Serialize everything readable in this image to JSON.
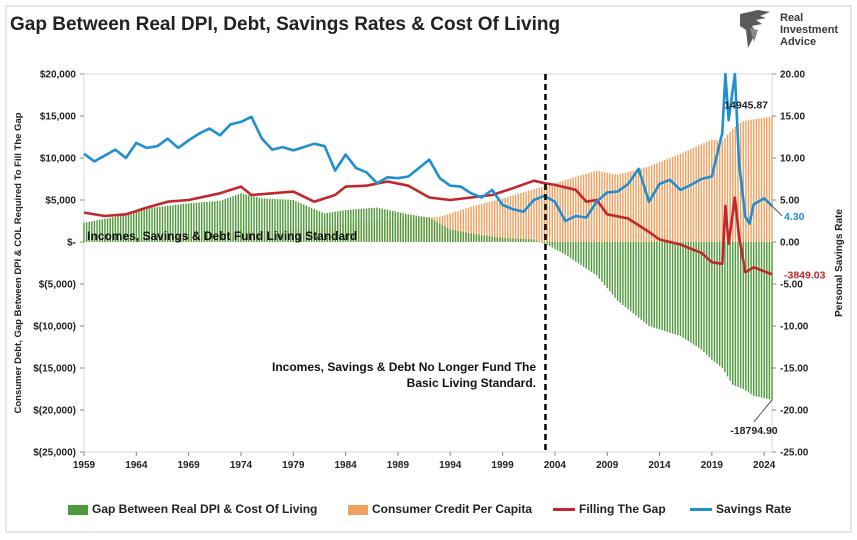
{
  "title": "Gap Between Real DPI, Debt, Savings Rates & Cost Of Living",
  "logo": {
    "lines": [
      "Real",
      "Investment",
      "Advice"
    ],
    "icon": "eagle-logo-icon"
  },
  "chart_data": {
    "type": "bar+line",
    "x_range": [
      1959,
      2024.75
    ],
    "x_ticks": [
      1959,
      1964,
      1969,
      1974,
      1979,
      1984,
      1989,
      1994,
      1999,
      2004,
      2009,
      2014,
      2019,
      2024
    ],
    "left_axis": {
      "label": "Consumer Debt, Gap Between DPI & COL Required To Fill The Gap",
      "range": [
        -25000,
        20000
      ],
      "ticks": [
        {
          "v": 20000,
          "t": "$20,000"
        },
        {
          "v": 15000,
          "t": "$15,000"
        },
        {
          "v": 10000,
          "t": "$10,000"
        },
        {
          "v": 5000,
          "t": "$5,000"
        },
        {
          "v": 0,
          "t": "$-"
        },
        {
          "v": -5000,
          "t": "$(5,000)"
        },
        {
          "v": -10000,
          "t": "$(10,000)"
        },
        {
          "v": -15000,
          "t": "$(15,000)"
        },
        {
          "v": -20000,
          "t": "$(20,000)"
        },
        {
          "v": -25000,
          "t": "$(25,000)"
        }
      ]
    },
    "right_axis": {
      "label": "Personal Savings Rate",
      "range": [
        -25,
        20
      ],
      "ticks": [
        {
          "v": 20,
          "t": "20.00"
        },
        {
          "v": 15,
          "t": "15.00"
        },
        {
          "v": 10,
          "t": "10.00"
        },
        {
          "v": 5,
          "t": "5.00"
        },
        {
          "v": 0,
          "t": "0.00"
        },
        {
          "v": -5,
          "t": "-5.00"
        },
        {
          "v": -10,
          "t": "-10.00"
        },
        {
          "v": -15,
          "t": "-15.00"
        },
        {
          "v": -20,
          "t": "-20.00"
        },
        {
          "v": -25,
          "t": "-25.00"
        }
      ]
    },
    "divider_x": 2003.1,
    "series": [
      {
        "name": "Gap Between Real DPI & Cost Of Living",
        "kind": "bar",
        "color": "#4e9a3a",
        "axis": "left",
        "points": [
          [
            1959,
            2300
          ],
          [
            1962,
            3000
          ],
          [
            1965,
            4000
          ],
          [
            1969,
            4600
          ],
          [
            1972,
            4900
          ],
          [
            1974,
            5800
          ],
          [
            1976,
            5200
          ],
          [
            1979,
            5000
          ],
          [
            1982,
            3400
          ],
          [
            1984,
            3800
          ],
          [
            1987,
            4100
          ],
          [
            1990,
            3300
          ],
          [
            1992,
            2900
          ],
          [
            1994,
            1500
          ],
          [
            1997,
            800
          ],
          [
            1999,
            500
          ],
          [
            2002,
            300
          ],
          [
            2003.2,
            -300
          ],
          [
            2005,
            -1500
          ],
          [
            2008,
            -4000
          ],
          [
            2010,
            -7000
          ],
          [
            2013,
            -10000
          ],
          [
            2016,
            -11200
          ],
          [
            2018,
            -12800
          ],
          [
            2019,
            -14000
          ],
          [
            2020,
            -15000
          ],
          [
            2021,
            -17000
          ],
          [
            2022,
            -17500
          ],
          [
            2023,
            -18300
          ],
          [
            2024.75,
            -18794.9
          ]
        ]
      },
      {
        "name": "Consumer Credit Per Capita",
        "kind": "bar",
        "color": "#f0a060",
        "axis": "left",
        "points": [
          [
            1959,
            300
          ],
          [
            1965,
            500
          ],
          [
            1970,
            800
          ],
          [
            1975,
            1200
          ],
          [
            1980,
            1600
          ],
          [
            1985,
            2300
          ],
          [
            1990,
            2900
          ],
          [
            1993,
            3000
          ],
          [
            1996,
            4200
          ],
          [
            1999,
            5200
          ],
          [
            2002,
            6300
          ],
          [
            2004,
            7000
          ],
          [
            2008,
            8500
          ],
          [
            2010,
            8000
          ],
          [
            2013,
            9000
          ],
          [
            2016,
            10500
          ],
          [
            2019,
            12200
          ],
          [
            2020,
            12000
          ],
          [
            2021,
            13500
          ],
          [
            2022,
            14400
          ],
          [
            2024.75,
            14945.87
          ]
        ]
      },
      {
        "name": "Filling The Gap",
        "kind": "line",
        "color": "#c0282d",
        "axis": "left",
        "points": [
          [
            1959,
            3500
          ],
          [
            1961,
            3100
          ],
          [
            1963,
            3300
          ],
          [
            1965,
            4100
          ],
          [
            1967,
            4800
          ],
          [
            1969,
            5000
          ],
          [
            1972,
            5800
          ],
          [
            1974,
            6600
          ],
          [
            1975,
            5600
          ],
          [
            1977,
            5800
          ],
          [
            1979,
            6000
          ],
          [
            1981,
            4800
          ],
          [
            1983,
            5600
          ],
          [
            1984,
            6600
          ],
          [
            1986,
            6700
          ],
          [
            1988,
            7200
          ],
          [
            1990,
            6700
          ],
          [
            1992,
            5300
          ],
          [
            1994,
            5000
          ],
          [
            1996,
            5300
          ],
          [
            1998,
            5600
          ],
          [
            2000,
            6400
          ],
          [
            2002,
            7300
          ],
          [
            2003,
            7000
          ],
          [
            2004,
            6800
          ],
          [
            2006,
            6200
          ],
          [
            2007,
            4800
          ],
          [
            2008,
            5000
          ],
          [
            2009,
            3300
          ],
          [
            2011,
            2800
          ],
          [
            2013,
            1200
          ],
          [
            2014,
            300
          ],
          [
            2016,
            -300
          ],
          [
            2018,
            -1300
          ],
          [
            2019,
            -2400
          ],
          [
            2020,
            -2600
          ],
          [
            2020.3,
            4300
          ],
          [
            2020.6,
            -200
          ],
          [
            2021.2,
            5300
          ],
          [
            2021.6,
            700
          ],
          [
            2022.2,
            -3600
          ],
          [
            2023,
            -3000
          ],
          [
            2024,
            -3500
          ],
          [
            2024.75,
            -3849.03
          ]
        ]
      },
      {
        "name": "Savings Rate",
        "kind": "line",
        "color": "#1f8fd0",
        "axis": "right",
        "points": [
          [
            1959,
            10.5
          ],
          [
            1960,
            9.6
          ],
          [
            1961,
            10.3
          ],
          [
            1962,
            11.0
          ],
          [
            1963,
            10.0
          ],
          [
            1964,
            11.8
          ],
          [
            1965,
            11.2
          ],
          [
            1966,
            11.4
          ],
          [
            1967,
            12.3
          ],
          [
            1968,
            11.2
          ],
          [
            1969,
            12.1
          ],
          [
            1970,
            12.9
          ],
          [
            1971,
            13.5
          ],
          [
            1972,
            12.7
          ],
          [
            1973,
            14.0
          ],
          [
            1974,
            14.3
          ],
          [
            1975,
            14.9
          ],
          [
            1976,
            12.3
          ],
          [
            1977,
            11.0
          ],
          [
            1978,
            11.3
          ],
          [
            1979,
            10.9
          ],
          [
            1980,
            11.3
          ],
          [
            1981,
            11.7
          ],
          [
            1982,
            11.4
          ],
          [
            1983,
            8.5
          ],
          [
            1984,
            10.4
          ],
          [
            1985,
            8.8
          ],
          [
            1986,
            8.3
          ],
          [
            1987,
            7.0
          ],
          [
            1988,
            7.7
          ],
          [
            1989,
            7.6
          ],
          [
            1990,
            7.8
          ],
          [
            1991,
            8.8
          ],
          [
            1992,
            9.8
          ],
          [
            1993,
            7.6
          ],
          [
            1994,
            6.7
          ],
          [
            1995,
            6.6
          ],
          [
            1996,
            5.8
          ],
          [
            1997,
            5.3
          ],
          [
            1998,
            6.2
          ],
          [
            1999,
            4.4
          ],
          [
            2000,
            3.9
          ],
          [
            2001,
            3.6
          ],
          [
            2002,
            5.0
          ],
          [
            2003,
            5.5
          ],
          [
            2004,
            4.8
          ],
          [
            2005,
            2.5
          ],
          [
            2006,
            3.1
          ],
          [
            2007,
            2.9
          ],
          [
            2008,
            4.8
          ],
          [
            2009,
            5.9
          ],
          [
            2010,
            6.0
          ],
          [
            2011,
            6.9
          ],
          [
            2012,
            8.7
          ],
          [
            2013,
            4.8
          ],
          [
            2014,
            6.9
          ],
          [
            2015,
            7.4
          ],
          [
            2016,
            6.2
          ],
          [
            2017,
            6.8
          ],
          [
            2018,
            7.5
          ],
          [
            2019,
            7.8
          ],
          [
            2020,
            13.0
          ],
          [
            2020.3,
            33.0
          ],
          [
            2020.6,
            14.5
          ],
          [
            2021.2,
            26.6
          ],
          [
            2021.6,
            9.5
          ],
          [
            2022.2,
            3.0
          ],
          [
            2022.6,
            2.2
          ],
          [
            2023,
            4.5
          ],
          [
            2023.6,
            4.9
          ],
          [
            2024,
            5.2
          ],
          [
            2024.75,
            4.3
          ]
        ]
      }
    ],
    "annotations": [
      {
        "text": "14945.87",
        "x": 2024.75,
        "y": 14945.87,
        "axis": "left",
        "color": "#222"
      },
      {
        "text": "4.30",
        "x": 2024.75,
        "y": 4.3,
        "axis": "right",
        "color": "#1f8fd0"
      },
      {
        "text": "-3849.03",
        "x": 2024.75,
        "y": -3849.03,
        "axis": "left",
        "color": "#c0282d"
      },
      {
        "text": "-18794.90",
        "x": 2024.75,
        "y": -18794.9,
        "axis": "left",
        "color": "#222"
      }
    ],
    "notes": [
      {
        "text": "Incomes, Savings & Debt Fund Living Standard",
        "x": 1959.3,
        "y": 0
      },
      {
        "lines": [
          "Incomes, Savings & Debt No Longer Fund The",
          "Basic Living Standard."
        ],
        "x": 2002.2,
        "y": -17000
      }
    ],
    "legend_position": "bottom"
  }
}
